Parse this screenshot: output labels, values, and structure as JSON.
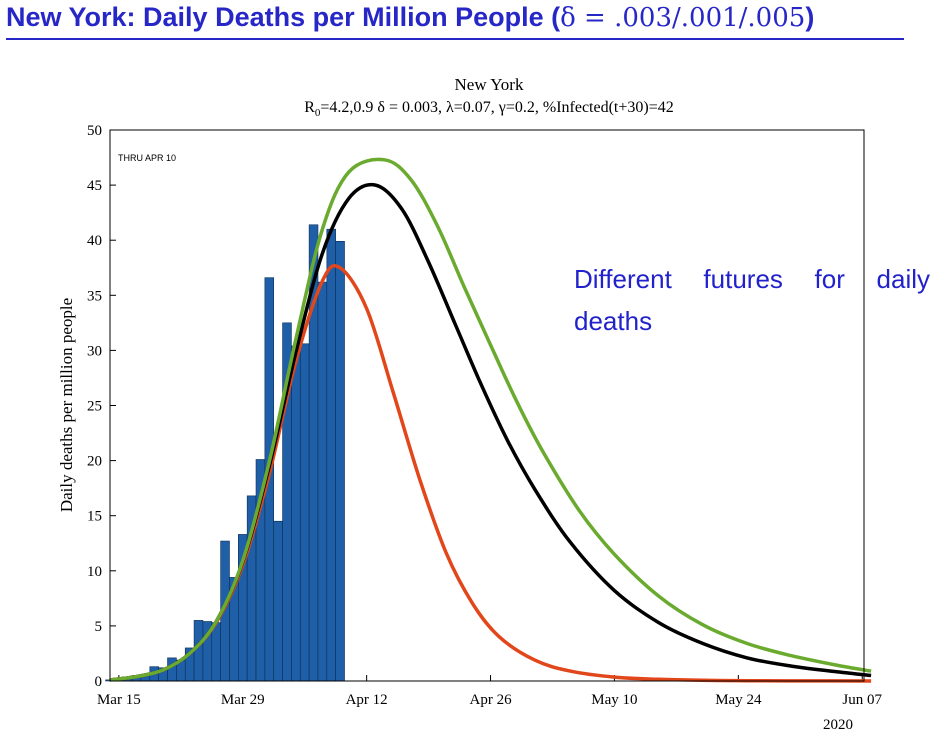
{
  "slide": {
    "title_text": "New York: Daily Deaths per Million People (",
    "title_math": "δ = .003/.001/.005",
    "title_close": ")"
  },
  "annotation": "Different futures for daily deaths",
  "chart_data": {
    "type": "bar",
    "title": "New York",
    "subtitle_r0": "R",
    "subtitle_r0_sub": "0",
    "subtitle_rest": "=4.2,0.9  δ = 0.003,  λ=0.07,  γ=0.2,  %Infected(t+30)=42",
    "inset_label": "THRU APR 10",
    "ylabel": "Daily deaths per million people",
    "year_label": "2020",
    "ylim": [
      0,
      50
    ],
    "y_ticks": [
      "0",
      "5",
      "10",
      "15",
      "20",
      "25",
      "30",
      "35",
      "40",
      "45",
      "50"
    ],
    "x_tick_labels": [
      "Mar 15",
      "Mar 29",
      "Apr 12",
      "Apr 26",
      "May 10",
      "May 24",
      "Jun 07"
    ],
    "bars": {
      "name": "Observed daily deaths",
      "color": "#1f5fa8",
      "x": [
        "Mar 14",
        "Mar 15",
        "Mar 16",
        "Mar 17",
        "Mar 18",
        "Mar 19",
        "Mar 20",
        "Mar 21",
        "Mar 22",
        "Mar 23",
        "Mar 24",
        "Mar 25",
        "Mar 26",
        "Mar 27",
        "Mar 28",
        "Mar 29",
        "Mar 30",
        "Mar 31",
        "Apr 01",
        "Apr 02",
        "Apr 03",
        "Apr 04",
        "Apr 05",
        "Apr 06",
        "Apr 07",
        "Apr 08",
        "Apr 09",
        "Apr 10"
      ],
      "values": [
        0.1,
        0.2,
        0.3,
        0.5,
        0.6,
        1.3,
        1.2,
        2.1,
        1.9,
        3.0,
        5.5,
        5.4,
        5.3,
        12.7,
        9.4,
        13.3,
        16.8,
        20.1,
        36.6,
        14.5,
        32.5,
        30.4,
        30.6,
        41.4,
        36.2,
        41.0,
        39.9,
        0
      ]
    },
    "series": [
      {
        "values_note": "",
        "color": "#e2461b",
        "x": [
          "Mar 14",
          "Mar 17",
          "Mar 20",
          "Mar 23",
          "Mar 26",
          "Mar 29",
          "Apr 01",
          "Apr 04",
          "Apr 07",
          "Apr 09",
          "Apr 12",
          "Apr 15",
          "Apr 18",
          "Apr 21",
          "Apr 24",
          "Apr 27",
          "May 01",
          "May 05",
          "May 10",
          "May 15",
          "May 20",
          "May 25",
          "Jun 01",
          "Jun 08"
        ],
        "values": [
          0.1,
          0.4,
          1.0,
          2.5,
          5.3,
          10.5,
          18.8,
          29.0,
          36.3,
          37.5,
          33.8,
          26.2,
          18.3,
          11.6,
          7.0,
          4.0,
          1.9,
          0.9,
          0.35,
          0.15,
          0.06,
          0.03,
          0.01,
          0
        ]
      },
      {
        "values_note": "",
        "color": "#000000",
        "x": [
          "Mar 14",
          "Mar 17",
          "Mar 20",
          "Mar 23",
          "Mar 26",
          "Mar 29",
          "Apr 01",
          "Apr 04",
          "Apr 07",
          "Apr 10",
          "Apr 13",
          "Apr 16",
          "Apr 19",
          "Apr 22",
          "Apr 25",
          "Apr 28",
          "May 01",
          "May 05",
          "May 10",
          "May 15",
          "May 20",
          "May 25",
          "May 30",
          "Jun 04",
          "Jun 08"
        ],
        "values": [
          0.1,
          0.4,
          1.0,
          2.5,
          5.4,
          10.8,
          19.5,
          29.8,
          38.8,
          43.8,
          45.0,
          42.8,
          38.0,
          32.4,
          26.8,
          21.7,
          17.4,
          12.6,
          8.2,
          5.3,
          3.4,
          2.1,
          1.35,
          0.85,
          0.5
        ]
      },
      {
        "values_note": "",
        "color": "#6aab2f",
        "x": [
          "Mar 14",
          "Mar 17",
          "Mar 20",
          "Mar 23",
          "Mar 26",
          "Mar 29",
          "Apr 01",
          "Apr 04",
          "Apr 07",
          "Apr 10",
          "Apr 14",
          "Apr 17",
          "Apr 20",
          "Apr 23",
          "Apr 26",
          "Apr 29",
          "May 02",
          "May 06",
          "May 10",
          "May 15",
          "May 20",
          "May 25",
          "May 30",
          "Jun 04",
          "Jun 08"
        ],
        "values": [
          0.1,
          0.4,
          1.0,
          2.5,
          5.4,
          10.9,
          19.9,
          31.0,
          41.0,
          46.2,
          47.3,
          45.5,
          41.3,
          35.8,
          30.5,
          25.3,
          20.7,
          15.5,
          11.5,
          7.7,
          5.1,
          3.4,
          2.3,
          1.45,
          0.9
        ]
      }
    ]
  }
}
